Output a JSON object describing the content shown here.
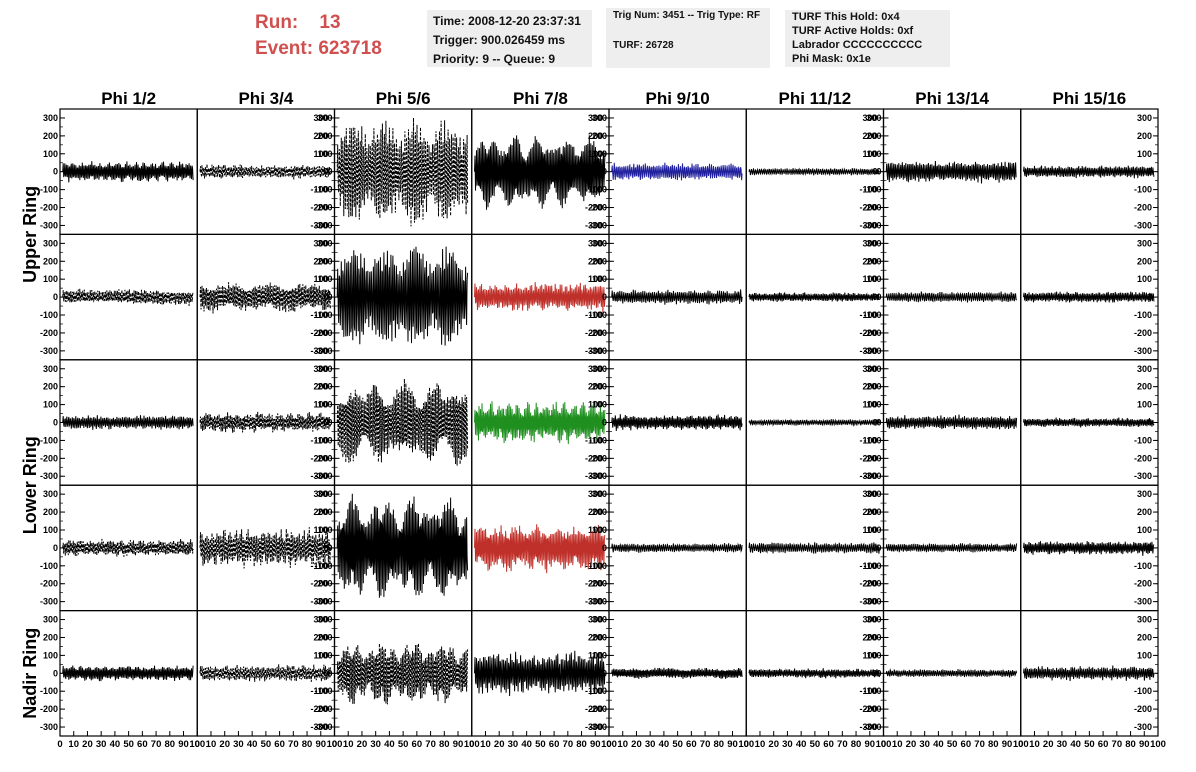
{
  "header": {
    "run_label": "Run:",
    "run_value": "13",
    "event_label": "Event:",
    "event_value": "623718",
    "time": "Time: 2008-12-20 23:37:31",
    "trigger": "Trigger: 900.026459 ms",
    "priority": "Priority: 9 -- Queue: 9",
    "trig_num": "Trig Num: 3451 -- Trig Type: RF",
    "turf": "TURF: 26728",
    "turf_this_hold": "TURF This Hold: 0x4",
    "turf_active_holds": "TURF Active Holds: 0xf",
    "labrador": "Labrador CCCCCCCCCC",
    "phi_mask": "Phi Mask: 0x1e"
  },
  "chart_data": {
    "type": "line",
    "columns": [
      "Phi 1/2",
      "Phi 3/4",
      "Phi 5/6",
      "Phi 7/8",
      "Phi 9/10",
      "Phi 11/12",
      "Phi 13/14",
      "Phi 15/16"
    ],
    "ring_labels": [
      "Upper Ring",
      "Lower Ring",
      "Nadir Ring"
    ],
    "rows": 5,
    "xlim": [
      0,
      100
    ],
    "ylim": [
      -350,
      350
    ],
    "x_ticks": [
      0,
      10,
      20,
      30,
      40,
      50,
      60,
      70,
      80,
      90,
      100
    ],
    "y_ticks": [
      -300,
      -200,
      -100,
      0,
      100,
      200,
      300
    ],
    "grid": false,
    "colors": {
      "default": "#000000",
      "blue": "#1f1f9e",
      "red": "#c0302a",
      "green": "#1f8f1f"
    },
    "panels": [
      [
        {
          "amp": 65,
          "style": "solid",
          "color": "default"
        },
        {
          "amp": 45,
          "style": "dashed",
          "color": "default"
        },
        {
          "amp": 320,
          "style": "dashed",
          "color": "default"
        },
        {
          "amp": 220,
          "style": "solid",
          "color": "default"
        },
        {
          "amp": 55,
          "style": "solid",
          "color": "blue"
        },
        {
          "amp": 22,
          "style": "solid",
          "color": "default"
        },
        {
          "amp": 70,
          "style": "solid",
          "color": "default"
        },
        {
          "amp": 40,
          "style": "solid",
          "color": "default"
        }
      ],
      [
        {
          "amp": 50,
          "style": "dashed",
          "color": "default"
        },
        {
          "amp": 95,
          "style": "dashed",
          "color": "default"
        },
        {
          "amp": 310,
          "style": "solid",
          "color": "default"
        },
        {
          "amp": 90,
          "style": "solid",
          "color": "red"
        },
        {
          "amp": 45,
          "style": "solid",
          "color": "default"
        },
        {
          "amp": 30,
          "style": "solid",
          "color": "default"
        },
        {
          "amp": 35,
          "style": "solid",
          "color": "default"
        },
        {
          "amp": 35,
          "style": "solid",
          "color": "default"
        }
      ],
      [
        {
          "amp": 45,
          "style": "solid",
          "color": "default"
        },
        {
          "amp": 65,
          "style": "dashed",
          "color": "default"
        },
        {
          "amp": 250,
          "style": "dashed",
          "color": "default"
        },
        {
          "amp": 130,
          "style": "solid",
          "color": "green"
        },
        {
          "amp": 50,
          "style": "solid",
          "color": "default"
        },
        {
          "amp": 20,
          "style": "solid",
          "color": "default"
        },
        {
          "amp": 45,
          "style": "solid",
          "color": "default"
        },
        {
          "amp": 30,
          "style": "solid",
          "color": "default"
        }
      ],
      [
        {
          "amp": 55,
          "style": "dashed",
          "color": "default"
        },
        {
          "amp": 120,
          "style": "dashed",
          "color": "default"
        },
        {
          "amp": 310,
          "style": "solid",
          "color": "default"
        },
        {
          "amp": 150,
          "style": "solid",
          "color": "red"
        },
        {
          "amp": 30,
          "style": "solid",
          "color": "default"
        },
        {
          "amp": 35,
          "style": "solid",
          "color": "default"
        },
        {
          "amp": 30,
          "style": "solid",
          "color": "default"
        },
        {
          "amp": 45,
          "style": "solid",
          "color": "default"
        }
      ],
      [
        {
          "amp": 50,
          "style": "solid",
          "color": "default"
        },
        {
          "amp": 55,
          "style": "dashed",
          "color": "default"
        },
        {
          "amp": 190,
          "style": "dashed",
          "color": "default"
        },
        {
          "amp": 140,
          "style": "solid",
          "color": "default"
        },
        {
          "amp": 35,
          "style": "solid",
          "color": "default"
        },
        {
          "amp": 30,
          "style": "solid",
          "color": "default"
        },
        {
          "amp": 25,
          "style": "solid",
          "color": "default"
        },
        {
          "amp": 45,
          "style": "solid",
          "color": "default"
        }
      ]
    ]
  }
}
